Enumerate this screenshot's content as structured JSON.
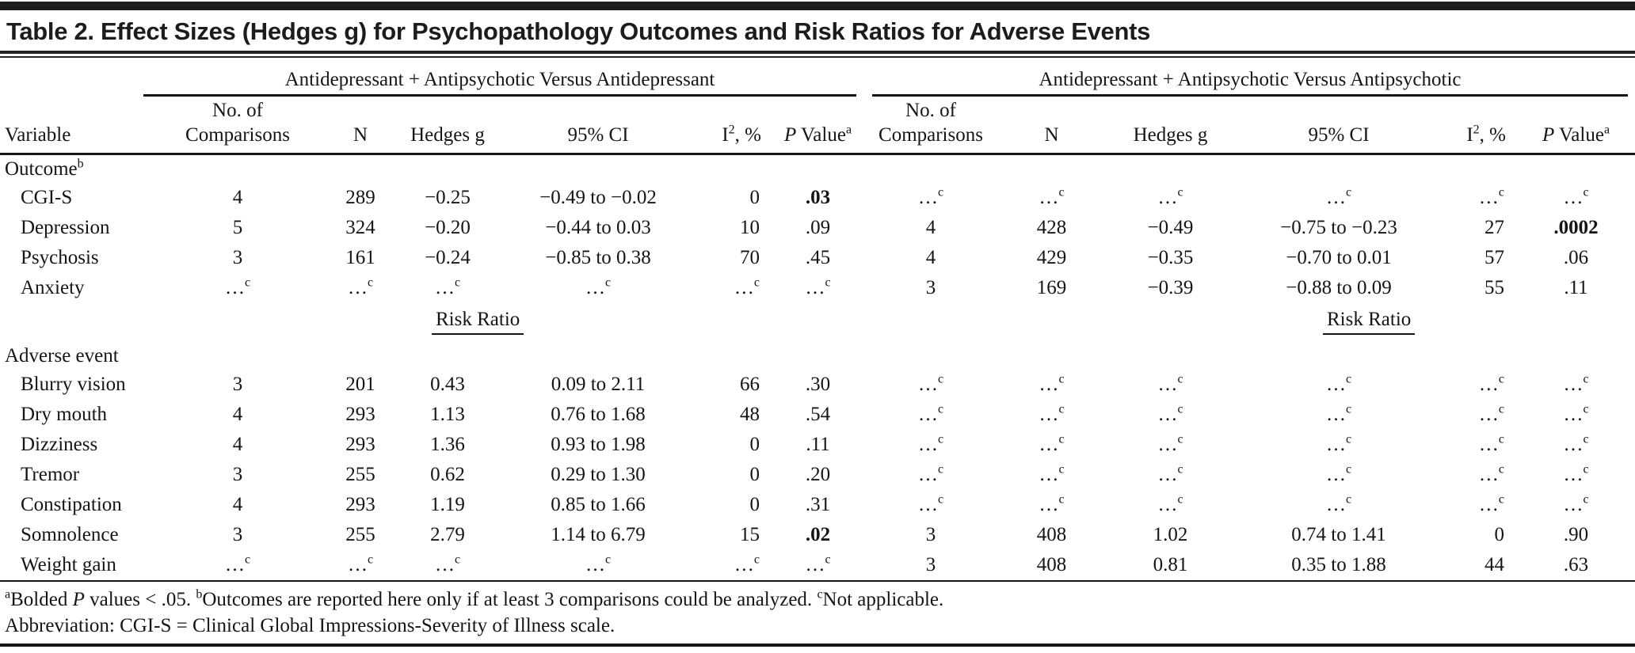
{
  "title": "Table 2. Effect Sizes (Hedges g) for Psychopathology Outcomes and Risk Ratios for Adverse Events",
  "table": {
    "group_headers": [
      "Antidepressant + Antipsychotic Versus Antidepressant",
      "Antidepressant + Antipsychotic Versus Antipsychotic"
    ],
    "column_headers": [
      "Variable",
      "No. of\nComparisons",
      "N",
      "Hedges g",
      "95% CI",
      "I^2, %",
      "*P* Value^a",
      "No. of\nComparisons",
      "N",
      "Hedges g",
      "95% CI",
      "I^2, %",
      "*P* Value^a"
    ],
    "sections": [
      {
        "type": "section",
        "label": "Outcome^b",
        "rows": [
          {
            "label": "CGI-S",
            "values": [
              "4",
              "289",
              "−0.25",
              "−0.49 to −0.02",
              "0",
              "**.03**",
              "…^c",
              "…^c",
              "…^c",
              "…^c",
              "…^c",
              "…^c"
            ]
          },
          {
            "label": "Depression",
            "values": [
              "5",
              "324",
              "−0.20",
              "−0.44 to 0.03",
              "10",
              ".09",
              "4",
              "428",
              "−0.49",
              "−0.75 to −0.23",
              "27",
              "**.0002**"
            ]
          },
          {
            "label": "Psychosis",
            "values": [
              "3",
              "161",
              "−0.24",
              "−0.85 to 0.38",
              "70",
              ".45",
              "4",
              "429",
              "−0.35",
              "−0.70 to 0.01",
              "57",
              ".06"
            ]
          },
          {
            "label": "Anxiety",
            "values": [
              "…^c",
              "…^c",
              "…^c",
              "…^c",
              "…^c",
              "…^c",
              "3",
              "169",
              "−0.39",
              "−0.88 to 0.09",
              "55",
              ".11"
            ]
          }
        ]
      },
      {
        "type": "risk-ratio-divider",
        "label": "Risk Ratio"
      },
      {
        "type": "section",
        "label": "Adverse event",
        "rows": [
          {
            "label": "Blurry vision",
            "values": [
              "3",
              "201",
              "0.43",
              "0.09 to 2.11",
              "66",
              ".30",
              "…^c",
              "…^c",
              "…^c",
              "…^c",
              "…^c",
              "…^c"
            ]
          },
          {
            "label": "Dry mouth",
            "values": [
              "4",
              "293",
              "1.13",
              "0.76 to 1.68",
              "48",
              ".54",
              "…^c",
              "…^c",
              "…^c",
              "…^c",
              "…^c",
              "…^c"
            ]
          },
          {
            "label": "Dizziness",
            "values": [
              "4",
              "293",
              "1.36",
              "0.93 to 1.98",
              "0",
              ".11",
              "…^c",
              "…^c",
              "…^c",
              "…^c",
              "…^c",
              "…^c"
            ]
          },
          {
            "label": "Tremor",
            "values": [
              "3",
              "255",
              "0.62",
              "0.29 to 1.30",
              "0",
              ".20",
              "…^c",
              "…^c",
              "…^c",
              "…^c",
              "…^c",
              "…^c"
            ]
          },
          {
            "label": "Constipation",
            "values": [
              "4",
              "293",
              "1.19",
              "0.85 to 1.66",
              "0",
              ".31",
              "…^c",
              "…^c",
              "…^c",
              "…^c",
              "…^c",
              "…^c"
            ]
          },
          {
            "label": "Somnolence",
            "values": [
              "3",
              "255",
              "2.79",
              "1.14 to 6.79",
              "15",
              "**.02**",
              "3",
              "408",
              "1.02",
              "0.74 to 1.41",
              "0",
              ".90"
            ]
          },
          {
            "label": "Weight gain",
            "values": [
              "…^c",
              "…^c",
              "…^c",
              "…^c",
              "…^c",
              "…^c",
              "3",
              "408",
              "0.81",
              "0.35 to 1.88",
              "44",
              ".63"
            ]
          }
        ]
      }
    ]
  },
  "footnotes": [
    "^aBolded *P* values < .05.  ^bOutcomes are reported here only if at least 3 comparisons could be analyzed.  ^cNot applicable.",
    "Abbreviation: CGI-S = Clinical Global Impressions-Severity of Illness scale."
  ]
}
